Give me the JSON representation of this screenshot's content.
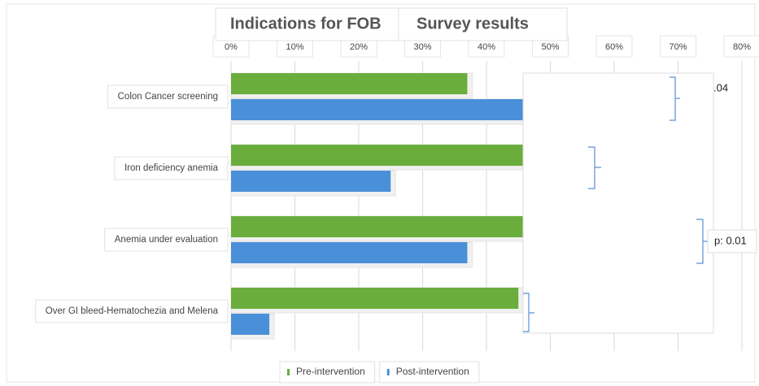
{
  "chart_data": {
    "type": "barh",
    "title": "Indications for FOB",
    "subtitle": "Survey results",
    "categories": [
      "Colon Cancer screening",
      "Iron deficiency anemia",
      "Anemia under evaluation",
      "Over GI bleed-Hematochezia and Melena"
    ],
    "series": [
      {
        "name": "Pre-intervention",
        "color": "#6aad3c",
        "values": [
          37,
          56,
          73,
          45
        ]
      },
      {
        "name": "Post-intervention",
        "color": "#4a90d9",
        "values": [
          69,
          25,
          37,
          6
        ]
      }
    ],
    "xlim": [
      0,
      80
    ],
    "xticks": [
      {
        "value": 0,
        "label": "0%"
      },
      {
        "value": 10,
        "label": "10%"
      },
      {
        "value": 20,
        "label": "20%"
      },
      {
        "value": 30,
        "label": "30%"
      },
      {
        "value": 40,
        "label": "40%"
      },
      {
        "value": 50,
        "label": "50%"
      },
      {
        "value": 60,
        "label": "60%"
      },
      {
        "value": 70,
        "label": "70%"
      },
      {
        "value": 80,
        "label": "80%"
      }
    ],
    "grid": true,
    "legend": "bottom",
    "annotations": [
      ".04",
      "p: 0.01"
    ]
  }
}
